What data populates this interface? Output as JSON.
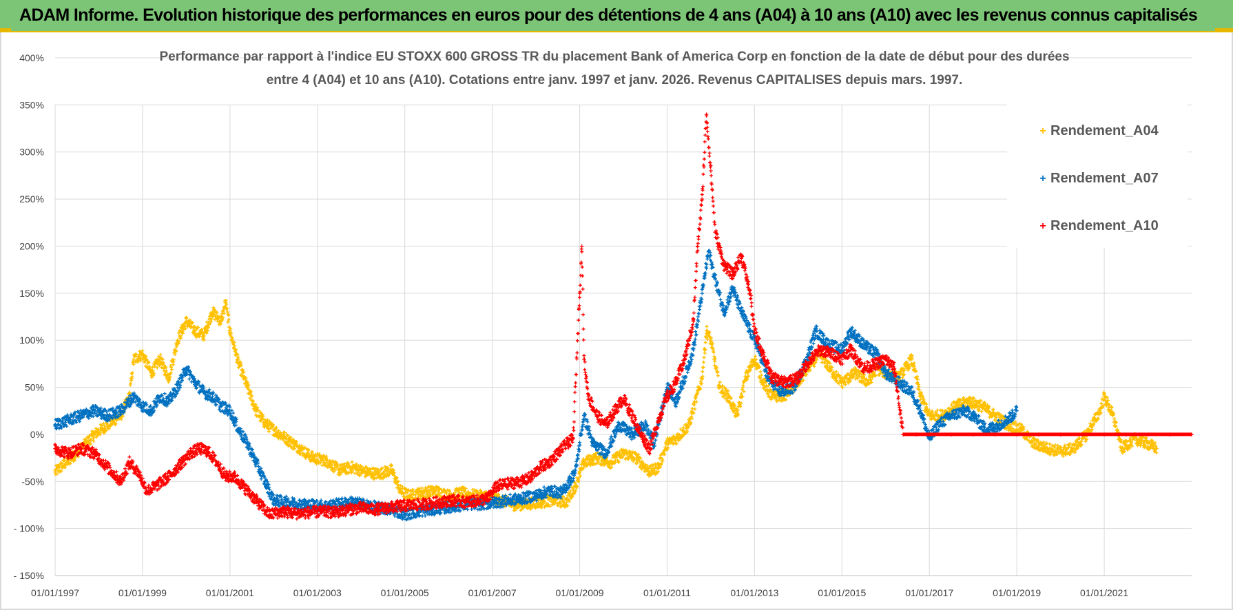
{
  "banner": {
    "title": "ADAM Informe. Evolution historique des performances en euros pour des détentions de 4 ans (A04) à 10 ans (A10) avec les revenus connus capitalisés"
  },
  "colors": {
    "A04": "#ffc000",
    "A07": "#0070c0",
    "A10": "#ff0000",
    "banner": "#7cc576",
    "accent": "#e6b800"
  },
  "chart_data": {
    "type": "scatter",
    "title_lines": [
      "Performance par rapport à l'indice EU STOXX 600 GROSS TR  du placement Bank of America Corp en fonction de la date de début pour des durées",
      "entre 4 (A04) et 10 ans (A10). Cotations entre janv. 1997 et janv. 2026. Revenus CAPITALISES depuis mars. 1997."
    ],
    "x_range": [
      1997.0,
      2023.0
    ],
    "y_range": [
      -150,
      400
    ],
    "y_ticks": [
      400,
      350,
      300,
      250,
      200,
      150,
      100,
      50,
      0,
      -50,
      -100,
      -150
    ],
    "y_tick_labels": [
      "400%",
      "350%",
      "300%",
      "250%",
      "200%",
      "150%",
      "100%",
      "50%",
      "0%",
      "-50%",
      "- 100%",
      "- 150%"
    ],
    "x_tick_years": [
      1997,
      1999,
      2001,
      2003,
      2005,
      2007,
      2009,
      2011,
      2013,
      2015,
      2017,
      2019,
      2021
    ],
    "x_tick_labels": [
      "01/01/1997",
      "01/01/1999",
      "01/01/2001",
      "01/01/2003",
      "01/01/2005",
      "01/01/2007",
      "01/01/2009",
      "01/01/2011",
      "01/01/2013",
      "01/01/2015",
      "01/01/2017",
      "01/01/2019",
      "01/01/2021"
    ],
    "legend_position": "top-right",
    "series": [
      {
        "name": "Rendement_A04",
        "color": "#ffc000",
        "points": [
          [
            1997.0,
            -40
          ],
          [
            1997.3,
            -28
          ],
          [
            1997.6,
            -15
          ],
          [
            1997.9,
            0
          ],
          [
            1998.2,
            10
          ],
          [
            1998.5,
            20
          ],
          [
            1998.7,
            40
          ],
          [
            1998.8,
            80
          ],
          [
            1999.0,
            85
          ],
          [
            1999.2,
            65
          ],
          [
            1999.4,
            80
          ],
          [
            1999.6,
            60
          ],
          [
            1999.8,
            100
          ],
          [
            2000.0,
            120
          ],
          [
            2000.2,
            110
          ],
          [
            2000.4,
            105
          ],
          [
            2000.6,
            130
          ],
          [
            2000.8,
            120
          ],
          [
            2000.9,
            140
          ],
          [
            2001.0,
            110
          ],
          [
            2001.2,
            75
          ],
          [
            2001.4,
            50
          ],
          [
            2001.6,
            25
          ],
          [
            2001.8,
            12
          ],
          [
            2002.0,
            5
          ],
          [
            2002.3,
            -5
          ],
          [
            2002.6,
            -15
          ],
          [
            2002.9,
            -25
          ],
          [
            2003.2,
            -28
          ],
          [
            2003.5,
            -38
          ],
          [
            2003.8,
            -35
          ],
          [
            2004.1,
            -40
          ],
          [
            2004.4,
            -42
          ],
          [
            2004.7,
            -38
          ],
          [
            2004.9,
            -60
          ],
          [
            2005.1,
            -65
          ],
          [
            2005.4,
            -62
          ],
          [
            2005.7,
            -60
          ],
          [
            2006.0,
            -65
          ],
          [
            2006.3,
            -62
          ],
          [
            2006.6,
            -65
          ],
          [
            2006.9,
            -66
          ],
          [
            2007.2,
            -70
          ],
          [
            2007.5,
            -75
          ],
          [
            2007.8,
            -74
          ],
          [
            2008.1,
            -72
          ],
          [
            2008.4,
            -70
          ],
          [
            2008.7,
            -72
          ],
          [
            2008.9,
            -55
          ],
          [
            2009.1,
            -30
          ],
          [
            2009.4,
            -25
          ],
          [
            2009.7,
            -30
          ],
          [
            2010.0,
            -20
          ],
          [
            2010.3,
            -25
          ],
          [
            2010.6,
            -40
          ],
          [
            2010.8,
            -35
          ],
          [
            2011.0,
            -10
          ],
          [
            2011.2,
            -5
          ],
          [
            2011.5,
            10
          ],
          [
            2011.8,
            60
          ],
          [
            2011.9,
            110
          ],
          [
            2012.0,
            100
          ],
          [
            2012.2,
            50
          ],
          [
            2012.4,
            40
          ],
          [
            2012.6,
            20
          ],
          [
            2012.8,
            60
          ],
          [
            2013.0,
            80
          ],
          [
            2013.2,
            55
          ],
          [
            2013.4,
            40
          ],
          [
            2013.7,
            42
          ],
          [
            2014.0,
            55
          ],
          [
            2014.3,
            75
          ],
          [
            2014.5,
            85
          ],
          [
            2014.8,
            65
          ],
          [
            2015.0,
            55
          ],
          [
            2015.3,
            65
          ],
          [
            2015.6,
            55
          ],
          [
            2015.8,
            70
          ],
          [
            2016.0,
            65
          ],
          [
            2016.3,
            60
          ],
          [
            2016.6,
            80
          ],
          [
            2016.8,
            40
          ],
          [
            2017.0,
            20
          ],
          [
            2017.3,
            20
          ],
          [
            2017.6,
            30
          ],
          [
            2017.9,
            35
          ],
          [
            2018.2,
            30
          ],
          [
            2018.5,
            20
          ],
          [
            2018.8,
            10
          ],
          [
            2019.1,
            5
          ],
          [
            2019.4,
            -10
          ],
          [
            2019.7,
            -15
          ],
          [
            2020.0,
            -18
          ],
          [
            2020.3,
            -15
          ],
          [
            2020.6,
            0
          ],
          [
            2020.9,
            25
          ],
          [
            2021.0,
            40
          ],
          [
            2021.2,
            20
          ],
          [
            2021.4,
            -15
          ],
          [
            2021.7,
            -5
          ],
          [
            2022.0,
            -10
          ],
          [
            2022.2,
            -15
          ]
        ]
      },
      {
        "name": "Rendement_A07",
        "color": "#0070c0",
        "points": [
          [
            1997.0,
            10
          ],
          [
            1997.3,
            15
          ],
          [
            1997.6,
            20
          ],
          [
            1997.9,
            25
          ],
          [
            1998.2,
            20
          ],
          [
            1998.5,
            25
          ],
          [
            1998.8,
            40
          ],
          [
            1999.0,
            30
          ],
          [
            1999.2,
            25
          ],
          [
            1999.4,
            40
          ],
          [
            1999.6,
            35
          ],
          [
            1999.8,
            50
          ],
          [
            2000.0,
            70
          ],
          [
            2000.2,
            55
          ],
          [
            2000.4,
            45
          ],
          [
            2000.6,
            40
          ],
          [
            2000.8,
            30
          ],
          [
            2001.0,
            25
          ],
          [
            2001.2,
            5
          ],
          [
            2001.4,
            -10
          ],
          [
            2001.6,
            -30
          ],
          [
            2001.8,
            -50
          ],
          [
            2002.0,
            -70
          ],
          [
            2002.3,
            -72
          ],
          [
            2002.6,
            -74
          ],
          [
            2002.9,
            -75
          ],
          [
            2003.2,
            -76
          ],
          [
            2003.5,
            -74
          ],
          [
            2003.8,
            -72
          ],
          [
            2004.1,
            -75
          ],
          [
            2004.4,
            -78
          ],
          [
            2004.7,
            -80
          ],
          [
            2005.0,
            -85
          ],
          [
            2005.3,
            -82
          ],
          [
            2005.6,
            -80
          ],
          [
            2005.9,
            -78
          ],
          [
            2006.2,
            -76
          ],
          [
            2006.5,
            -74
          ],
          [
            2006.8,
            -74
          ],
          [
            2007.1,
            -72
          ],
          [
            2007.4,
            -70
          ],
          [
            2007.7,
            -68
          ],
          [
            2008.0,
            -65
          ],
          [
            2008.3,
            -60
          ],
          [
            2008.6,
            -62
          ],
          [
            2008.9,
            -40
          ],
          [
            2009.1,
            20
          ],
          [
            2009.3,
            -10
          ],
          [
            2009.6,
            -20
          ],
          [
            2009.9,
            10
          ],
          [
            2010.2,
            0
          ],
          [
            2010.5,
            10
          ],
          [
            2010.7,
            -10
          ],
          [
            2011.0,
            50
          ],
          [
            2011.2,
            35
          ],
          [
            2011.4,
            60
          ],
          [
            2011.6,
            90
          ],
          [
            2011.8,
            150
          ],
          [
            2011.95,
            195
          ],
          [
            2012.1,
            165
          ],
          [
            2012.3,
            130
          ],
          [
            2012.5,
            155
          ],
          [
            2012.7,
            130
          ],
          [
            2012.9,
            110
          ],
          [
            2013.1,
            90
          ],
          [
            2013.3,
            60
          ],
          [
            2013.6,
            45
          ],
          [
            2013.9,
            50
          ],
          [
            2014.2,
            80
          ],
          [
            2014.4,
            110
          ],
          [
            2014.7,
            95
          ],
          [
            2015.0,
            90
          ],
          [
            2015.2,
            110
          ],
          [
            2015.5,
            95
          ],
          [
            2015.8,
            85
          ],
          [
            2016.0,
            65
          ],
          [
            2016.3,
            55
          ],
          [
            2016.6,
            45
          ],
          [
            2016.8,
            25
          ],
          [
            2017.0,
            -5
          ],
          [
            2017.2,
            10
          ],
          [
            2017.5,
            20
          ],
          [
            2017.8,
            25
          ],
          [
            2018.0,
            20
          ],
          [
            2018.3,
            5
          ],
          [
            2018.6,
            10
          ],
          [
            2018.9,
            20
          ],
          [
            2019.0,
            25
          ]
        ]
      },
      {
        "name": "Rendement_A10",
        "color": "#ff0000",
        "points": [
          [
            1997.0,
            -15
          ],
          [
            1997.3,
            -20
          ],
          [
            1997.6,
            -15
          ],
          [
            1997.9,
            -20
          ],
          [
            1998.2,
            -35
          ],
          [
            1998.5,
            -50
          ],
          [
            1998.7,
            -30
          ],
          [
            1998.9,
            -40
          ],
          [
            1999.1,
            -60
          ],
          [
            1999.3,
            -55
          ],
          [
            1999.6,
            -45
          ],
          [
            1999.9,
            -30
          ],
          [
            2000.1,
            -20
          ],
          [
            2000.3,
            -15
          ],
          [
            2000.5,
            -18
          ],
          [
            2000.7,
            -30
          ],
          [
            2000.9,
            -45
          ],
          [
            2001.1,
            -45
          ],
          [
            2001.3,
            -55
          ],
          [
            2001.6,
            -70
          ],
          [
            2001.9,
            -85
          ],
          [
            2002.2,
            -82
          ],
          [
            2002.5,
            -84
          ],
          [
            2002.8,
            -83
          ],
          [
            2003.1,
            -82
          ],
          [
            2003.4,
            -83
          ],
          [
            2003.7,
            -80
          ],
          [
            2004.0,
            -78
          ],
          [
            2004.3,
            -80
          ],
          [
            2004.6,
            -78
          ],
          [
            2004.9,
            -76
          ],
          [
            2005.2,
            -75
          ],
          [
            2005.5,
            -74
          ],
          [
            2005.8,
            -72
          ],
          [
            2006.1,
            -70
          ],
          [
            2006.4,
            -72
          ],
          [
            2006.7,
            -70
          ],
          [
            2006.9,
            -68
          ],
          [
            2007.1,
            -55
          ],
          [
            2007.4,
            -52
          ],
          [
            2007.7,
            -50
          ],
          [
            2007.9,
            -45
          ],
          [
            2008.1,
            -35
          ],
          [
            2008.3,
            -30
          ],
          [
            2008.5,
            -20
          ],
          [
            2008.7,
            -10
          ],
          [
            2008.85,
            -5
          ],
          [
            2009.0,
            150
          ],
          [
            2009.05,
            200
          ],
          [
            2009.1,
            80
          ],
          [
            2009.2,
            40
          ],
          [
            2009.4,
            20
          ],
          [
            2009.6,
            10
          ],
          [
            2009.8,
            25
          ],
          [
            2010.0,
            38
          ],
          [
            2010.2,
            20
          ],
          [
            2010.4,
            0
          ],
          [
            2010.6,
            -15
          ],
          [
            2010.8,
            15
          ],
          [
            2011.0,
            40
          ],
          [
            2011.2,
            55
          ],
          [
            2011.4,
            80
          ],
          [
            2011.6,
            120
          ],
          [
            2011.7,
            200
          ],
          [
            2011.8,
            250
          ],
          [
            2011.9,
            340
          ],
          [
            2012.0,
            280
          ],
          [
            2012.1,
            215
          ],
          [
            2012.3,
            180
          ],
          [
            2012.5,
            170
          ],
          [
            2012.7,
            190
          ],
          [
            2012.9,
            150
          ],
          [
            2013.0,
            110
          ],
          [
            2013.2,
            85
          ],
          [
            2013.4,
            60
          ],
          [
            2013.7,
            55
          ],
          [
            2014.0,
            60
          ],
          [
            2014.2,
            75
          ],
          [
            2014.5,
            90
          ],
          [
            2014.8,
            85
          ],
          [
            2015.0,
            80
          ],
          [
            2015.2,
            90
          ],
          [
            2015.5,
            70
          ],
          [
            2015.8,
            75
          ],
          [
            2016.0,
            80
          ],
          [
            2016.2,
            70
          ],
          [
            2016.4,
            0
          ],
          [
            2016.7,
            0
          ],
          [
            2017.0,
            0
          ],
          [
            2017.5,
            0
          ],
          [
            2018.0,
            0
          ],
          [
            2018.5,
            0
          ],
          [
            2019.0,
            0
          ],
          [
            2019.5,
            0
          ],
          [
            2020.0,
            0
          ],
          [
            2020.5,
            0
          ],
          [
            2021.0,
            0
          ],
          [
            2021.5,
            0
          ],
          [
            2022.0,
            0
          ],
          [
            2022.5,
            0
          ],
          [
            2023.0,
            0
          ]
        ]
      }
    ]
  }
}
